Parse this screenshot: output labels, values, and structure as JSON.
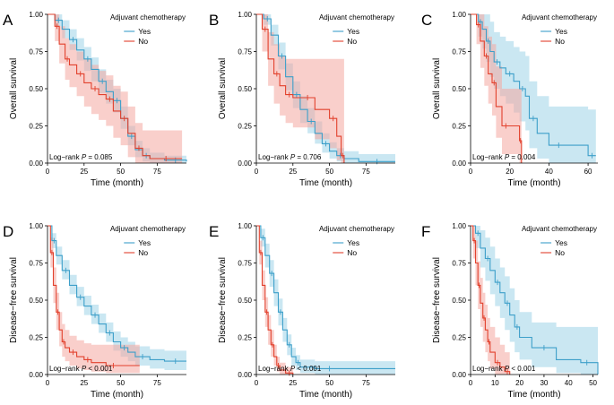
{
  "figure": {
    "colors": {
      "yes": "#3d9fc9",
      "no": "#e2412d",
      "yes_band": "#9fd3e8",
      "no_band": "#f4a7a0"
    },
    "legend": {
      "title": "Adjuvant chemotherapy",
      "yes_label": "Yes",
      "no_label": "No"
    }
  },
  "chart_data": [
    {
      "letter": "A",
      "type": "line",
      "ylabel": "Overall survival",
      "xlabel": "Time (month)",
      "xlim": [
        0,
        95
      ],
      "ylim": [
        0,
        1
      ],
      "xticks": [
        0,
        25,
        50,
        75
      ],
      "yticks": [
        "0.00",
        "0.25",
        "0.50",
        "0.75",
        "1.00"
      ],
      "pvalue_text": [
        "Log−rank ",
        "P",
        " = 0.085"
      ],
      "series": [
        {
          "name": "Yes",
          "x": [
            0,
            5,
            10,
            15,
            20,
            25,
            30,
            35,
            40,
            45,
            50,
            55,
            60,
            65,
            70,
            80,
            95
          ],
          "y": [
            1,
            0.96,
            0.9,
            0.83,
            0.76,
            0.7,
            0.63,
            0.55,
            0.48,
            0.42,
            0.3,
            0.18,
            0.09,
            0.05,
            0.03,
            0.02,
            0.01
          ],
          "lower": [
            1,
            0.92,
            0.84,
            0.76,
            0.69,
            0.62,
            0.55,
            0.47,
            0.4,
            0.34,
            0.23,
            0.12,
            0.04,
            0.01,
            0,
            0,
            0
          ],
          "upper": [
            1,
            1,
            0.96,
            0.9,
            0.84,
            0.78,
            0.71,
            0.63,
            0.56,
            0.5,
            0.38,
            0.25,
            0.15,
            0.1,
            0.07,
            0.05,
            0.03
          ]
        },
        {
          "name": "No",
          "x": [
            0,
            5,
            8,
            12,
            15,
            20,
            25,
            30,
            35,
            40,
            45,
            50,
            55,
            60,
            65,
            70,
            92
          ],
          "y": [
            1,
            0.92,
            0.8,
            0.7,
            0.66,
            0.6,
            0.54,
            0.5,
            0.46,
            0.43,
            0.35,
            0.3,
            0.2,
            0.1,
            0.05,
            0.03,
            0.03
          ],
          "lower": [
            1,
            0.82,
            0.67,
            0.56,
            0.51,
            0.45,
            0.38,
            0.33,
            0.29,
            0.25,
            0.17,
            0.12,
            0.04,
            0,
            0,
            0,
            0
          ],
          "upper": [
            1,
            1,
            0.92,
            0.84,
            0.8,
            0.75,
            0.7,
            0.66,
            0.62,
            0.59,
            0.52,
            0.48,
            0.38,
            0.27,
            0.22,
            0.22,
            0.22
          ]
        }
      ]
    },
    {
      "letter": "B",
      "type": "line",
      "ylabel": "Overall survival",
      "xlabel": "Time (month)",
      "xlim": [
        0,
        95
      ],
      "ylim": [
        0,
        1
      ],
      "xticks": [
        0,
        25,
        50,
        75
      ],
      "yticks": [
        "0.00",
        "0.25",
        "0.50",
        "0.75",
        "1.00"
      ],
      "pvalue_text": [
        "Log−rank ",
        "P",
        " = 0.706"
      ],
      "series": [
        {
          "name": "Yes",
          "x": [
            0,
            5,
            10,
            15,
            20,
            25,
            30,
            35,
            40,
            45,
            50,
            55,
            60,
            70,
            95
          ],
          "y": [
            1,
            0.97,
            0.86,
            0.72,
            0.58,
            0.46,
            0.36,
            0.28,
            0.2,
            0.13,
            0.08,
            0.05,
            0.03,
            0.01,
            0.01
          ],
          "lower": [
            1,
            0.93,
            0.79,
            0.63,
            0.49,
            0.37,
            0.27,
            0.2,
            0.13,
            0.07,
            0.03,
            0.01,
            0,
            0,
            0
          ],
          "upper": [
            1,
            1,
            0.93,
            0.81,
            0.67,
            0.55,
            0.45,
            0.37,
            0.28,
            0.2,
            0.14,
            0.1,
            0.08,
            0.06,
            0.06
          ]
        },
        {
          "name": "No",
          "x": [
            0,
            4,
            8,
            12,
            16,
            20,
            25,
            30,
            40,
            50,
            55,
            58,
            60
          ],
          "y": [
            1,
            0.9,
            0.7,
            0.6,
            0.52,
            0.46,
            0.44,
            0.44,
            0.36,
            0.3,
            0.18,
            0.05,
            0
          ],
          "lower": [
            1,
            0.75,
            0.52,
            0.4,
            0.32,
            0.27,
            0.24,
            0.24,
            0.16,
            0.1,
            0.02,
            0,
            0
          ],
          "upper": [
            1,
            1,
            0.88,
            0.8,
            0.72,
            0.7,
            0.7,
            0.7,
            0.7,
            0.7,
            0.7,
            0.7,
            0.7
          ]
        }
      ]
    },
    {
      "letter": "C",
      "type": "line",
      "ylabel": "Overall survival",
      "xlabel": "Time (month)",
      "xlim": [
        0,
        65
      ],
      "ylim": [
        0,
        1
      ],
      "xticks": [
        0,
        20,
        40,
        60
      ],
      "yticks": [
        "0.00",
        "0.25",
        "0.50",
        "0.75",
        "1.00"
      ],
      "pvalue_text": [
        "Log−rank ",
        "P",
        " = 0.004"
      ],
      "series": [
        {
          "name": "Yes",
          "x": [
            0,
            4,
            6,
            8,
            10,
            12,
            15,
            18,
            22,
            25,
            28,
            30,
            34,
            40,
            50,
            60,
            64
          ],
          "y": [
            1,
            0.95,
            0.9,
            0.82,
            0.75,
            0.68,
            0.64,
            0.6,
            0.55,
            0.5,
            0.45,
            0.3,
            0.2,
            0.12,
            0.12,
            0.05,
            0.05
          ],
          "lower": [
            1,
            0.85,
            0.77,
            0.68,
            0.58,
            0.5,
            0.45,
            0.4,
            0.34,
            0.28,
            0.22,
            0.1,
            0.03,
            0,
            0,
            0,
            0
          ],
          "upper": [
            1,
            1,
            1,
            1,
            0.95,
            0.88,
            0.85,
            0.82,
            0.78,
            0.75,
            0.72,
            0.55,
            0.45,
            0.38,
            0.38,
            0.36,
            0.36
          ]
        },
        {
          "name": "No",
          "x": [
            0,
            3,
            5,
            7,
            9,
            11,
            13,
            16,
            20,
            25,
            26
          ],
          "y": [
            1,
            0.93,
            0.82,
            0.72,
            0.6,
            0.54,
            0.38,
            0.25,
            0.25,
            0.15,
            0
          ],
          "lower": [
            1,
            0.8,
            0.64,
            0.52,
            0.4,
            0.32,
            0.17,
            0.06,
            0.06,
            0,
            0
          ],
          "upper": [
            1,
            1,
            1,
            0.92,
            0.85,
            0.8,
            0.65,
            0.5,
            0.5,
            0.5,
            0.5
          ]
        }
      ]
    },
    {
      "letter": "D",
      "type": "line",
      "ylabel": "Disease−free survival",
      "xlabel": "Time (month)",
      "xlim": [
        0,
        95
      ],
      "ylim": [
        0,
        1
      ],
      "xticks": [
        0,
        25,
        50,
        75
      ],
      "yticks": [
        "0.00",
        "0.25",
        "0.50",
        "0.75",
        "1.00"
      ],
      "pvalue_text": [
        "Log−rank ",
        "P",
        " < 0.001"
      ],
      "series": [
        {
          "name": "Yes",
          "x": [
            0,
            3,
            6,
            10,
            15,
            20,
            25,
            30,
            35,
            40,
            45,
            50,
            55,
            60,
            70,
            80,
            95
          ],
          "y": [
            1,
            0.9,
            0.8,
            0.7,
            0.6,
            0.52,
            0.46,
            0.4,
            0.34,
            0.28,
            0.22,
            0.18,
            0.15,
            0.12,
            0.1,
            0.09,
            0.09
          ],
          "lower": [
            1,
            0.85,
            0.74,
            0.64,
            0.54,
            0.46,
            0.4,
            0.34,
            0.28,
            0.22,
            0.16,
            0.12,
            0.09,
            0.06,
            0.04,
            0.03,
            0.03
          ],
          "upper": [
            1,
            0.95,
            0.86,
            0.77,
            0.67,
            0.59,
            0.53,
            0.47,
            0.41,
            0.35,
            0.29,
            0.25,
            0.22,
            0.19,
            0.17,
            0.16,
            0.16
          ]
        },
        {
          "name": "No",
          "x": [
            0,
            2,
            4,
            6,
            8,
            10,
            12,
            15,
            20,
            25,
            30,
            40,
            50,
            63
          ],
          "y": [
            1,
            0.82,
            0.6,
            0.42,
            0.3,
            0.22,
            0.18,
            0.15,
            0.12,
            0.1,
            0.08,
            0.06,
            0.06,
            0.06
          ],
          "lower": [
            1,
            0.72,
            0.48,
            0.3,
            0.19,
            0.12,
            0.09,
            0.06,
            0.04,
            0.03,
            0.02,
            0.01,
            0.01,
            0.01
          ],
          "upper": [
            1,
            0.92,
            0.72,
            0.55,
            0.42,
            0.34,
            0.3,
            0.26,
            0.23,
            0.21,
            0.2,
            0.2,
            0.2,
            0.2
          ]
        }
      ]
    },
    {
      "letter": "E",
      "type": "line",
      "ylabel": "Disease−free survival",
      "xlabel": "Time (month)",
      "xlim": [
        0,
        95
      ],
      "ylim": [
        0,
        1
      ],
      "xticks": [
        0,
        25,
        50,
        75
      ],
      "yticks": [
        "0.00",
        "0.25",
        "0.50",
        "0.75",
        "1.00"
      ],
      "pvalue_text": [
        "Log−rank ",
        "P",
        " < 0.001"
      ],
      "series": [
        {
          "name": "Yes",
          "x": [
            0,
            3,
            6,
            9,
            12,
            15,
            18,
            21,
            24,
            27,
            30,
            40,
            60,
            95
          ],
          "y": [
            1,
            0.92,
            0.8,
            0.68,
            0.55,
            0.42,
            0.3,
            0.2,
            0.12,
            0.08,
            0.05,
            0.04,
            0.04,
            0.04
          ],
          "lower": [
            1,
            0.86,
            0.72,
            0.59,
            0.46,
            0.33,
            0.22,
            0.13,
            0.06,
            0.03,
            0.01,
            0,
            0,
            0
          ],
          "upper": [
            1,
            0.98,
            0.88,
            0.77,
            0.64,
            0.51,
            0.38,
            0.27,
            0.18,
            0.13,
            0.1,
            0.09,
            0.09,
            0.09
          ]
        },
        {
          "name": "No",
          "x": [
            0,
            2,
            4,
            6,
            8,
            10,
            12,
            14,
            16,
            20,
            25
          ],
          "y": [
            1,
            0.82,
            0.6,
            0.42,
            0.3,
            0.2,
            0.12,
            0.06,
            0.03,
            0.01,
            0
          ],
          "lower": [
            1,
            0.74,
            0.5,
            0.32,
            0.2,
            0.12,
            0.06,
            0.02,
            0,
            0,
            0
          ],
          "upper": [
            1,
            0.9,
            0.7,
            0.52,
            0.4,
            0.3,
            0.2,
            0.12,
            0.08,
            0.05,
            0.05
          ]
        }
      ]
    },
    {
      "letter": "F",
      "type": "line",
      "ylabel": "Disease−free survival",
      "xlabel": "Time (month)",
      "xlim": [
        0,
        52
      ],
      "ylim": [
        0,
        1
      ],
      "xticks": [
        0,
        10,
        20,
        30,
        40,
        50
      ],
      "yticks": [
        "0.00",
        "0.25",
        "0.50",
        "0.75",
        "1.00"
      ],
      "pvalue_text": [
        "Log−rank ",
        "P",
        " < 0.001"
      ],
      "series": [
        {
          "name": "Yes",
          "x": [
            0,
            2,
            4,
            6,
            8,
            10,
            12,
            14,
            16,
            18,
            20,
            25,
            35,
            45,
            50,
            52
          ],
          "y": [
            1,
            0.95,
            0.85,
            0.78,
            0.7,
            0.62,
            0.55,
            0.48,
            0.4,
            0.32,
            0.25,
            0.18,
            0.1,
            0.08,
            0.08,
            0
          ],
          "lower": [
            1,
            0.85,
            0.72,
            0.63,
            0.54,
            0.46,
            0.38,
            0.3,
            0.22,
            0.15,
            0.1,
            0.05,
            0.01,
            0,
            0,
            0
          ],
          "upper": [
            1,
            1,
            0.97,
            0.92,
            0.86,
            0.78,
            0.72,
            0.66,
            0.58,
            0.5,
            0.42,
            0.35,
            0.32,
            0.32,
            0.32,
            0.32
          ]
        },
        {
          "name": "No",
          "x": [
            0,
            1,
            2,
            3,
            4,
            5,
            6,
            7,
            8,
            10,
            12,
            14,
            16
          ],
          "y": [
            1,
            0.9,
            0.75,
            0.6,
            0.48,
            0.38,
            0.3,
            0.22,
            0.15,
            0.08,
            0.05,
            0.02,
            0
          ],
          "lower": [
            1,
            0.78,
            0.6,
            0.44,
            0.32,
            0.22,
            0.15,
            0.09,
            0.04,
            0,
            0,
            0,
            0
          ],
          "upper": [
            1,
            1,
            0.9,
            0.76,
            0.65,
            0.55,
            0.47,
            0.38,
            0.32,
            0.25,
            0.2,
            0.15,
            0.15
          ]
        }
      ]
    }
  ]
}
